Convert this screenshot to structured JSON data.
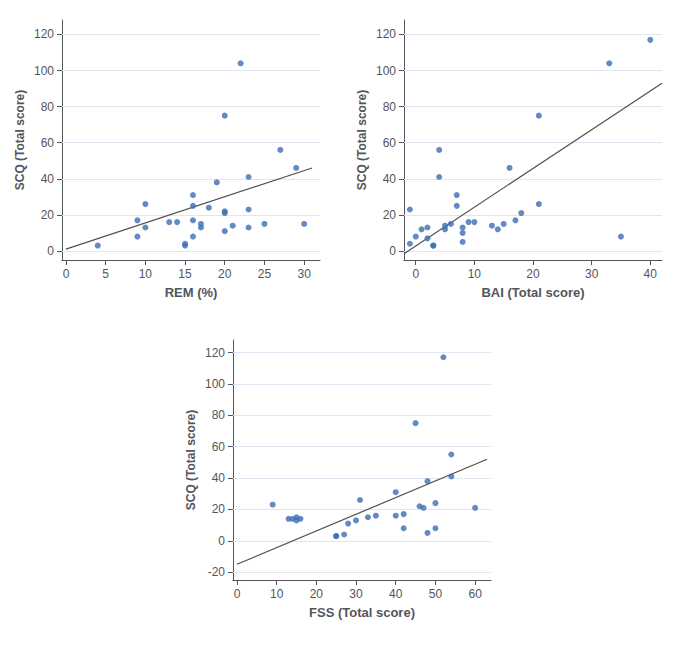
{
  "chart_data": [
    {
      "type": "scatter",
      "xlabel": "REM (%)",
      "ylabel": "SCQ (Total score)",
      "xlim": [
        -0.5,
        32
      ],
      "ylim": [
        -5,
        128
      ],
      "xticks": [
        0,
        5,
        10,
        15,
        20,
        25,
        30
      ],
      "yticks": [
        0,
        20,
        40,
        60,
        80,
        100,
        120
      ],
      "grid": true,
      "series": [
        {
          "type": "scatter",
          "color": "#3C6EB4",
          "x": [
            4,
            9,
            9,
            10,
            10,
            13,
            14,
            15,
            15,
            16,
            16,
            16,
            16,
            17,
            17,
            18,
            19,
            20,
            20,
            20,
            20,
            21,
            22,
            23,
            23,
            23,
            25,
            27,
            29,
            30
          ],
          "values": [
            3,
            17,
            8,
            26,
            13,
            16,
            16,
            4,
            3,
            31,
            25,
            17,
            8,
            13,
            15,
            24,
            38,
            22,
            21,
            11,
            75,
            14,
            104,
            41,
            13,
            23,
            15,
            56,
            46,
            15
          ]
        },
        {
          "type": "line",
          "color": "#505050",
          "x": [
            0,
            31
          ],
          "values": [
            1,
            46
          ]
        }
      ]
    },
    {
      "type": "scatter",
      "xlabel": "BAI (Total score)",
      "ylabel": "SCQ (Total score)",
      "xlim": [
        -2,
        42
      ],
      "ylim": [
        -5,
        128
      ],
      "xticks": [
        0,
        10,
        20,
        30,
        40
      ],
      "yticks": [
        0,
        20,
        40,
        60,
        80,
        100,
        120
      ],
      "grid": true,
      "series": [
        {
          "type": "scatter",
          "color": "#3C6EB4",
          "x": [
            -1,
            -1,
            0,
            1,
            2,
            2,
            3,
            3,
            4,
            4,
            5,
            5,
            6,
            7,
            7,
            8,
            8,
            8,
            9,
            10,
            13,
            14,
            15,
            16,
            17,
            18,
            21,
            21,
            33,
            35,
            40
          ],
          "values": [
            4,
            23,
            8,
            12,
            13,
            7,
            3,
            3,
            41,
            56,
            12,
            14,
            15,
            31,
            25,
            5,
            10,
            13,
            16,
            16,
            14,
            12,
            15,
            46,
            17,
            21,
            75,
            26,
            104,
            8,
            117
          ]
        },
        {
          "type": "line",
          "color": "#505050",
          "x": [
            -2,
            42
          ],
          "values": [
            -1.5,
            93
          ]
        }
      ]
    },
    {
      "type": "scatter",
      "xlabel": "FSS (Total score)",
      "ylabel": "SCQ (Total score)",
      "xlim": [
        -1,
        64
      ],
      "ylim": [
        -25,
        128
      ],
      "xticks": [
        0,
        10,
        20,
        30,
        40,
        50,
        60
      ],
      "yticks": [
        -20,
        0,
        20,
        40,
        60,
        80,
        100,
        120
      ],
      "grid": true,
      "series": [
        {
          "type": "scatter",
          "color": "#3C6EB4",
          "x": [
            9,
            13,
            14,
            15,
            15,
            16,
            25,
            25,
            27,
            28,
            30,
            31,
            33,
            35,
            40,
            40,
            42,
            42,
            45,
            46,
            47,
            48,
            48,
            50,
            50,
            52,
            54,
            54,
            60
          ],
          "values": [
            23,
            14,
            14,
            15,
            13,
            14,
            3,
            3,
            4,
            11,
            13,
            26,
            15,
            16,
            31,
            16,
            8,
            17,
            75,
            22,
            21,
            38,
            5,
            8,
            24,
            117,
            55,
            41,
            21
          ]
        },
        {
          "type": "line",
          "color": "#505050",
          "x": [
            0,
            63
          ],
          "values": [
            -15,
            52
          ]
        }
      ]
    }
  ]
}
